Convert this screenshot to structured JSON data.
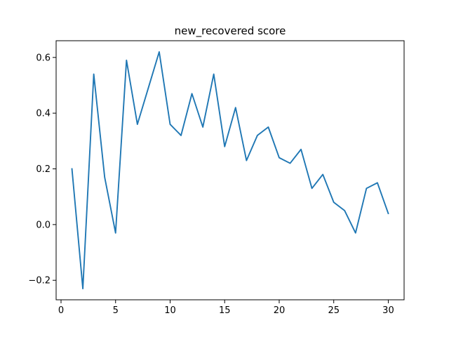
{
  "chart_data": {
    "type": "line",
    "title": "new_recovered score",
    "xlabel": "",
    "ylabel": "",
    "xlim": [
      -0.45,
      31.45
    ],
    "ylim": [
      -0.27,
      0.66
    ],
    "xticks": [
      0,
      5,
      10,
      15,
      20,
      25,
      30
    ],
    "xtick_labels": [
      "0",
      "5",
      "10",
      "15",
      "20",
      "25",
      "30"
    ],
    "yticks": [
      -0.2,
      0.0,
      0.2,
      0.4,
      0.6
    ],
    "ytick_labels": [
      "−0.2",
      "0.0",
      "0.2",
      "0.4",
      "0.6"
    ],
    "grid": false,
    "legend": "none",
    "series": [
      {
        "color": "#1f77b4",
        "x": [
          1,
          2,
          3,
          4,
          5,
          6,
          7,
          8,
          9,
          10,
          11,
          12,
          13,
          14,
          15,
          16,
          17,
          18,
          19,
          20,
          21,
          22,
          23,
          24,
          25,
          26,
          27,
          28,
          29,
          30
        ],
        "values": [
          0.2,
          -0.23,
          0.54,
          0.17,
          -0.03,
          0.59,
          0.36,
          0.49,
          0.62,
          0.36,
          0.32,
          0.47,
          0.35,
          0.54,
          0.28,
          0.42,
          0.23,
          0.32,
          0.35,
          0.24,
          0.22,
          0.27,
          0.13,
          0.18,
          0.08,
          0.05,
          -0.03,
          0.13,
          0.15,
          0.04
        ]
      }
    ]
  }
}
